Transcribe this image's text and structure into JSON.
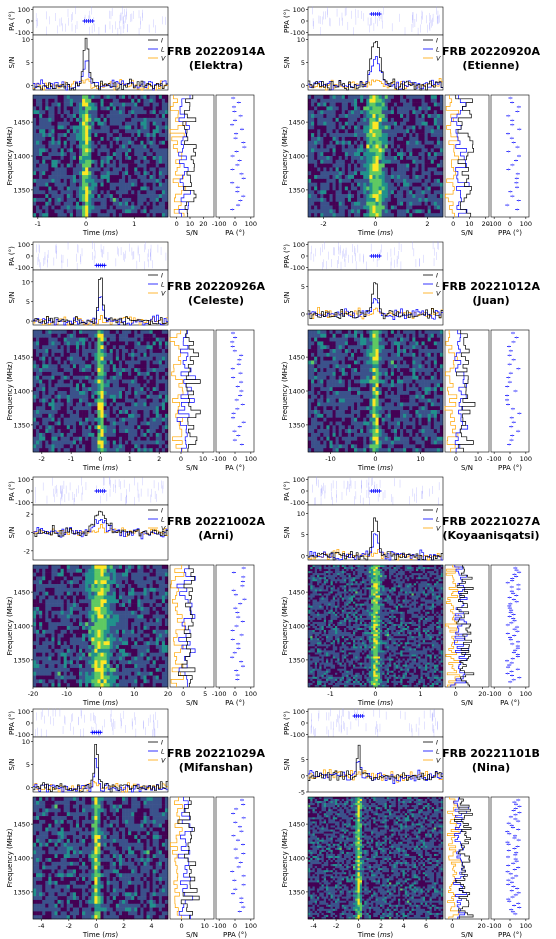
{
  "colors": {
    "I": "#000000",
    "L": "#0000ff",
    "V": "#ffa500",
    "pa_points": "#0000ff"
  },
  "colormap": [
    "#440154",
    "#3b528b",
    "#21918c",
    "#5ec962",
    "#fde725"
  ],
  "legend": {
    "I": "I",
    "L": "L",
    "V": "V"
  },
  "chart_data": [
    {
      "type": "heatmap",
      "title": "FRB 20220914A",
      "subtitle": "(Elektra)",
      "pa_label": "PA (°)",
      "x_range": [
        -1.1,
        1.7
      ],
      "x_ticks": [
        -1,
        0,
        1
      ],
      "y_ticks": [
        1350,
        1400,
        1450
      ],
      "freq_range": [
        1310,
        1490
      ],
      "sn_ticks": [
        0,
        5,
        10
      ],
      "sn_range": [
        -1,
        11
      ],
      "spec_ticks": [
        0,
        10,
        20
      ],
      "spec_range": [
        -5,
        28
      ],
      "pa_ticks": [
        -100,
        0,
        100
      ],
      "burst_peak": 10,
      "burst_center": 0,
      "burst_width": 0.08,
      "pa_spot": [
        0.05,
        0
      ]
    },
    {
      "type": "heatmap",
      "title": "FRB 20220920A",
      "subtitle": "(Etienne)",
      "pa_label": "PPA (°)",
      "x_range": [
        -2.6,
        2.6
      ],
      "x_ticks": [
        -2,
        0,
        2
      ],
      "y_ticks": [
        1350,
        1400,
        1450
      ],
      "freq_range": [
        1310,
        1490
      ],
      "sn_ticks": [
        0,
        5,
        10
      ],
      "sn_range": [
        -1,
        11
      ],
      "spec_ticks": [
        0,
        10,
        20
      ],
      "spec_range": [
        -5,
        22
      ],
      "pa_ticks": [
        -100,
        0,
        100
      ],
      "burst_peak": 10,
      "burst_center": 0,
      "burst_width": 0.25,
      "pa_spot": [
        0,
        60
      ]
    },
    {
      "type": "heatmap",
      "title": "FRB 20220926A",
      "subtitle": "(Celeste)",
      "pa_label": "PA (°)",
      "x_range": [
        -2.3,
        2.3
      ],
      "x_ticks": [
        -2,
        -1,
        0,
        1,
        2
      ],
      "y_ticks": [
        1350,
        1400,
        1450
      ],
      "freq_range": [
        1310,
        1490
      ],
      "sn_ticks": [
        0,
        5,
        10
      ],
      "sn_range": [
        -1,
        13
      ],
      "spec_ticks": [
        0,
        10
      ],
      "spec_range": [
        -5,
        15
      ],
      "pa_ticks": [
        -100,
        0,
        100
      ],
      "burst_peak": 12,
      "burst_center": 0,
      "burst_width": 0.1,
      "pa_spot": [
        0,
        -80
      ]
    },
    {
      "type": "heatmap",
      "title": "FRB 20221012A",
      "subtitle": "(Juan)",
      "pa_label": "PPA (°)",
      "x_range": [
        -15,
        15
      ],
      "x_ticks": [
        -10,
        0,
        10
      ],
      "y_ticks": [
        1350,
        1400,
        1450
      ],
      "freq_range": [
        1310,
        1490
      ],
      "sn_ticks": [
        0,
        5
      ],
      "sn_range": [
        -2,
        8
      ],
      "spec_ticks": [
        0,
        10
      ],
      "spec_range": [
        -5,
        15
      ],
      "pa_ticks": [
        -100,
        0,
        100
      ],
      "burst_peak": 6,
      "burst_center": 0,
      "burst_width": 0.8,
      "pa_spot": [
        0,
        0
      ]
    },
    {
      "type": "heatmap",
      "title": "FRB 20221002A",
      "subtitle": "(Arni)",
      "pa_label": "PA (°)",
      "x_range": [
        -20,
        20
      ],
      "x_ticks": [
        -20,
        -10,
        0,
        10,
        20
      ],
      "y_ticks": [
        1350,
        1400,
        1450
      ],
      "freq_range": [
        1310,
        1490
      ],
      "sn_ticks": [
        -2,
        0,
        2
      ],
      "sn_range": [
        -3,
        3
      ],
      "spec_ticks": [
        0,
        5
      ],
      "spec_range": [
        -3,
        7
      ],
      "pa_ticks": [
        -100,
        0,
        100
      ],
      "burst_peak": 2,
      "burst_center": 0,
      "burst_width": 2.5,
      "pa_spot": [
        0,
        0
      ]
    },
    {
      "type": "heatmap",
      "title": "FRB 20221027A",
      "subtitle": "(Koyaanisqatsi)",
      "pa_label": "PA (°)",
      "x_range": [
        -1.5,
        1.5
      ],
      "x_ticks": [
        -1,
        0,
        1
      ],
      "y_ticks": [
        1350,
        1400,
        1450
      ],
      "freq_range": [
        1310,
        1490
      ],
      "sn_ticks": [
        0,
        5,
        10
      ],
      "sn_range": [
        -1,
        12
      ],
      "spec_ticks": [
        0,
        20
      ],
      "spec_range": [
        -8,
        25
      ],
      "pa_ticks": [
        -100,
        0,
        100
      ],
      "burst_peak": 10,
      "burst_center": 0,
      "burst_width": 0.08,
      "pa_spot": [
        0,
        0
      ]
    },
    {
      "type": "heatmap",
      "title": "FRB 20221029A",
      "subtitle": "(Mifanshan)",
      "pa_label": "PPA (°)",
      "x_range": [
        -4.6,
        5.2
      ],
      "x_ticks": [
        -4,
        -2,
        0,
        2,
        4
      ],
      "y_ticks": [
        1350,
        1400,
        1450
      ],
      "freq_range": [
        1310,
        1490
      ],
      "sn_ticks": [
        0,
        5,
        10
      ],
      "sn_range": [
        -1,
        11
      ],
      "spec_ticks": [
        0,
        10
      ],
      "spec_range": [
        -5,
        14
      ],
      "pa_ticks": [
        -100,
        0,
        100
      ],
      "burst_peak": 10,
      "burst_center": 0,
      "burst_width": 0.2,
      "pa_spot": [
        0,
        -80
      ]
    },
    {
      "type": "heatmap",
      "title": "FRB 20221101B",
      "subtitle": "(Nina)",
      "pa_label": "PPA (°)",
      "x_range": [
        -4.5,
        7.5
      ],
      "x_ticks": [
        -4,
        -2,
        0,
        2,
        4,
        6
      ],
      "y_ticks": [
        1350,
        1400,
        1450
      ],
      "freq_range": [
        1310,
        1490
      ],
      "sn_ticks": [
        -5,
        0,
        5
      ],
      "sn_range": [
        -5,
        12
      ],
      "spec_ticks": [
        0,
        20
      ],
      "spec_range": [
        -5,
        25
      ],
      "pa_ticks": [
        -100,
        0,
        100
      ],
      "burst_peak": 10,
      "burst_center": 0,
      "burst_width": 0.2,
      "pa_spot": [
        0,
        60
      ]
    }
  ],
  "axis_labels": {
    "time": "Time (ms)",
    "time_prefix": "Time (",
    "time_unit": "ms",
    "time_suffix": ")",
    "frequency": "Frequency (MHz)",
    "sn": "S/N"
  }
}
